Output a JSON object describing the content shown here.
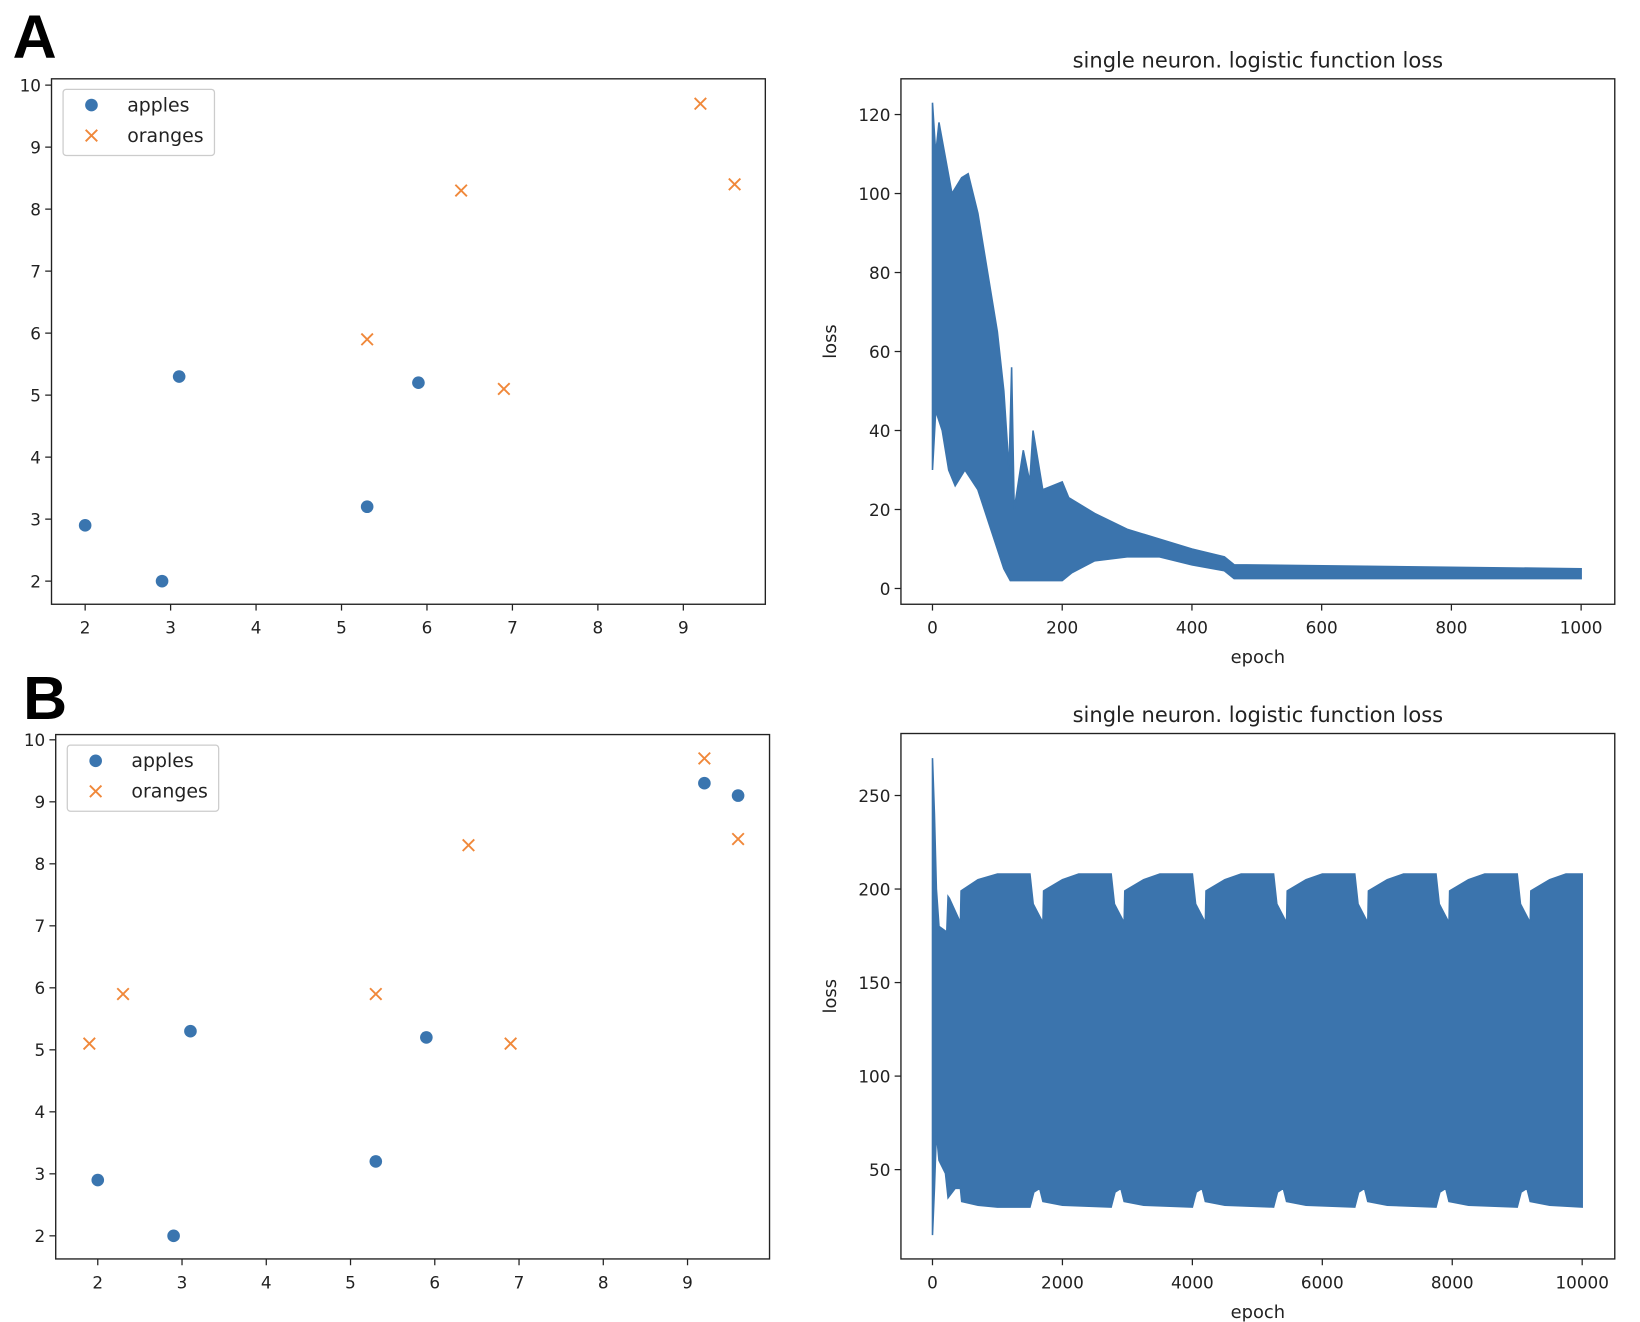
{
  "panels": [
    "A",
    "B"
  ],
  "colors": {
    "apples": "#3a75af",
    "oranges": "#f0883a",
    "loss": "#3b74ad"
  },
  "chart_data": [
    {
      "id": "A-scatter",
      "type": "scatter",
      "panel": "A",
      "title": "",
      "xlabel": "",
      "ylabel": "",
      "xticks": [
        2,
        3,
        4,
        5,
        6,
        7,
        8,
        9
      ],
      "yticks": [
        2,
        3,
        4,
        5,
        6,
        7,
        8,
        9,
        10
      ],
      "legend": {
        "placement": "top-left",
        "entries": [
          "apples",
          "oranges"
        ]
      },
      "series": [
        {
          "name": "apples",
          "marker": "circle",
          "points": [
            [
              2,
              2.9
            ],
            [
              2.9,
              2.0
            ],
            [
              3.1,
              5.3
            ],
            [
              5.3,
              3.2
            ],
            [
              5.9,
              5.2
            ]
          ]
        },
        {
          "name": "oranges",
          "marker": "x",
          "points": [
            [
              5.3,
              5.9
            ],
            [
              6.4,
              8.3
            ],
            [
              6.9,
              5.1
            ],
            [
              9.2,
              9.7
            ],
            [
              9.6,
              8.4
            ]
          ]
        }
      ]
    },
    {
      "id": "A-loss",
      "type": "area",
      "panel": "A",
      "title": "single neuron. logistic function loss",
      "xlabel": "epoch",
      "ylabel": "loss",
      "xticks": [
        0,
        200,
        400,
        600,
        800,
        1000
      ],
      "yticks": [
        0,
        20,
        40,
        60,
        80,
        100,
        120
      ],
      "series": [
        {
          "name": "loss",
          "note": "rapid oscillation filled between envelopes",
          "upper": [
            [
              0,
              123
            ],
            [
              5,
              110
            ],
            [
              10,
              118
            ],
            [
              30,
              100
            ],
            [
              45,
              104
            ],
            [
              55,
              105
            ],
            [
              70,
              95
            ],
            [
              85,
              80
            ],
            [
              100,
              65
            ],
            [
              110,
              50
            ],
            [
              118,
              30
            ],
            [
              122,
              56
            ],
            [
              126,
              20
            ],
            [
              140,
              35
            ],
            [
              150,
              27
            ],
            [
              155,
              40
            ],
            [
              170,
              25
            ],
            [
              200,
              27
            ],
            [
              210,
              23
            ],
            [
              250,
              19
            ],
            [
              300,
              15
            ],
            [
              400,
              10
            ],
            [
              450,
              8
            ],
            [
              465,
              6
            ],
            [
              1000,
              5
            ]
          ],
          "lower": [
            [
              0,
              30
            ],
            [
              5,
              45
            ],
            [
              15,
              40
            ],
            [
              25,
              30
            ],
            [
              35,
              26
            ],
            [
              50,
              30
            ],
            [
              70,
              25
            ],
            [
              90,
              15
            ],
            [
              110,
              5
            ],
            [
              120,
              2
            ],
            [
              200,
              2
            ],
            [
              215,
              4
            ],
            [
              250,
              7
            ],
            [
              300,
              8
            ],
            [
              350,
              8
            ],
            [
              400,
              6
            ],
            [
              450,
              4.5
            ],
            [
              465,
              2.5
            ],
            [
              1000,
              2.5
            ]
          ]
        }
      ]
    },
    {
      "id": "B-scatter",
      "type": "scatter",
      "panel": "B",
      "title": "",
      "xlabel": "",
      "ylabel": "",
      "xticks": [
        2,
        3,
        4,
        5,
        6,
        7,
        8,
        9
      ],
      "yticks": [
        2,
        3,
        4,
        5,
        6,
        7,
        8,
        9,
        10
      ],
      "legend": {
        "placement": "top-left",
        "entries": [
          "apples",
          "oranges"
        ]
      },
      "series": [
        {
          "name": "apples",
          "marker": "circle",
          "points": [
            [
              2,
              2.9
            ],
            [
              2.9,
              2.0
            ],
            [
              3.1,
              5.3
            ],
            [
              5.3,
              3.2
            ],
            [
              5.9,
              5.2
            ],
            [
              9.2,
              9.3
            ],
            [
              9.6,
              9.1
            ]
          ]
        },
        {
          "name": "oranges",
          "marker": "x",
          "points": [
            [
              1.9,
              5.1
            ],
            [
              2.3,
              5.9
            ],
            [
              5.3,
              5.9
            ],
            [
              6.4,
              8.3
            ],
            [
              6.9,
              5.1
            ],
            [
              9.2,
              9.7
            ],
            [
              9.6,
              8.4
            ]
          ]
        }
      ]
    },
    {
      "id": "B-loss",
      "type": "area",
      "panel": "B",
      "title": "single neuron. logistic function loss",
      "xlabel": "epoch",
      "ylabel": "loss",
      "xticks": [
        0,
        2000,
        4000,
        6000,
        8000,
        10000
      ],
      "yticks": [
        50,
        100,
        150,
        200,
        250
      ],
      "series": [
        {
          "name": "loss",
          "note": "rapid oscillation filled between envelopes",
          "upper": [
            [
              0,
              270
            ],
            [
              30,
              240
            ],
            [
              60,
              200
            ],
            [
              100,
              180
            ],
            [
              220,
              177
            ],
            [
              240,
              196
            ],
            [
              260,
              195
            ],
            [
              430,
              182
            ],
            [
              440,
              199
            ],
            [
              700,
              205
            ],
            [
              1000,
              208
            ],
            [
              1500,
              208
            ],
            [
              1550,
              192
            ],
            [
              1700,
              182
            ],
            [
              1710,
              199
            ],
            [
              2000,
              205
            ],
            [
              2250,
              208
            ],
            [
              2750,
              208
            ],
            [
              2800,
              192
            ],
            [
              2950,
              182
            ],
            [
              2960,
              199
            ],
            [
              3250,
              205
            ],
            [
              3500,
              208
            ],
            [
              4000,
              208
            ],
            [
              4050,
              192
            ],
            [
              4200,
              182
            ],
            [
              4210,
              199
            ],
            [
              4500,
              205
            ],
            [
              4750,
              208
            ],
            [
              5250,
              208
            ],
            [
              5300,
              192
            ],
            [
              5450,
              182
            ],
            [
              5460,
              199
            ],
            [
              5750,
              205
            ],
            [
              6000,
              208
            ],
            [
              6500,
              208
            ],
            [
              6550,
              192
            ],
            [
              6700,
              182
            ],
            [
              6710,
              199
            ],
            [
              7000,
              205
            ],
            [
              7250,
              208
            ],
            [
              7750,
              208
            ],
            [
              7800,
              192
            ],
            [
              7950,
              182
            ],
            [
              7960,
              199
            ],
            [
              8250,
              205
            ],
            [
              8500,
              208
            ],
            [
              9000,
              208
            ],
            [
              9050,
              192
            ],
            [
              9200,
              182
            ],
            [
              9210,
              199
            ],
            [
              9500,
              205
            ],
            [
              9750,
              208
            ],
            [
              10000,
              208
            ]
          ],
          "lower": [
            [
              0,
              15
            ],
            [
              30,
              40
            ],
            [
              60,
              70
            ],
            [
              100,
              55
            ],
            [
              200,
              48
            ],
            [
              240,
              35
            ],
            [
              350,
              40
            ],
            [
              430,
              40
            ],
            [
              450,
              33
            ],
            [
              700,
              31
            ],
            [
              1000,
              30
            ],
            [
              1500,
              30
            ],
            [
              1560,
              38
            ],
            [
              1650,
              40
            ],
            [
              1700,
              33
            ],
            [
              2000,
              31
            ],
            [
              2750,
              30
            ],
            [
              2810,
              38
            ],
            [
              2900,
              40
            ],
            [
              2950,
              33
            ],
            [
              3250,
              31
            ],
            [
              4000,
              30
            ],
            [
              4060,
              38
            ],
            [
              4150,
              40
            ],
            [
              4200,
              33
            ],
            [
              4500,
              31
            ],
            [
              5250,
              30
            ],
            [
              5310,
              38
            ],
            [
              5400,
              40
            ],
            [
              5450,
              33
            ],
            [
              5750,
              31
            ],
            [
              6500,
              30
            ],
            [
              6560,
              38
            ],
            [
              6650,
              40
            ],
            [
              6700,
              33
            ],
            [
              7000,
              31
            ],
            [
              7750,
              30
            ],
            [
              7810,
              38
            ],
            [
              7900,
              40
            ],
            [
              7950,
              33
            ],
            [
              8250,
              31
            ],
            [
              9000,
              30
            ],
            [
              9060,
              38
            ],
            [
              9150,
              40
            ],
            [
              9200,
              33
            ],
            [
              9500,
              31
            ],
            [
              10000,
              30
            ]
          ]
        }
      ]
    }
  ]
}
